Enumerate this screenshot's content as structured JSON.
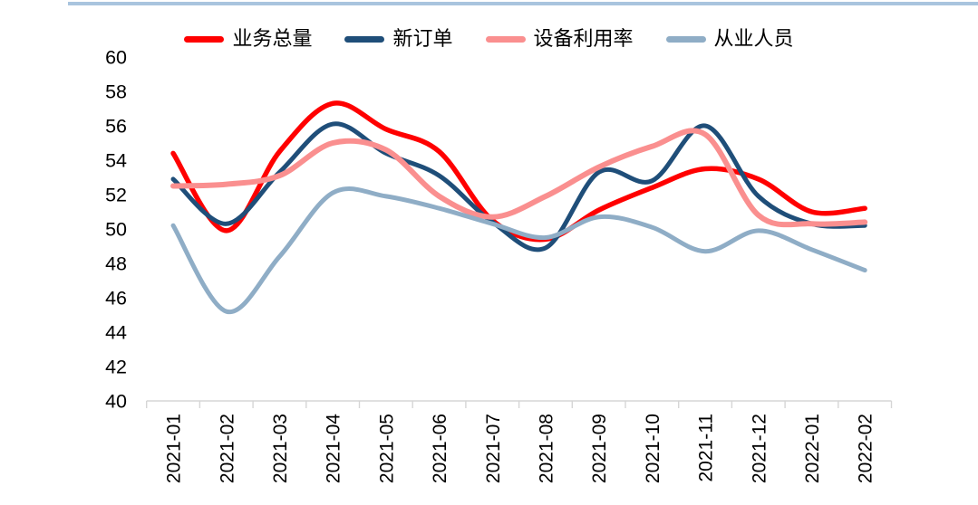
{
  "page": {
    "background": "#ffffff"
  },
  "top_bar": {
    "color": "#a9c4de"
  },
  "axis": {
    "line_color": "#d6d6d6",
    "tick_color": "#d6d6d6",
    "label_color": "#000000"
  },
  "chart_data": {
    "type": "line",
    "title": "",
    "xlabel": "",
    "ylabel": "",
    "grid": false,
    "legend_position": "top",
    "smooth": true,
    "ylim": [
      40,
      60
    ],
    "ytick_step": 2,
    "yticks": [
      40,
      42,
      44,
      46,
      48,
      50,
      52,
      54,
      56,
      58,
      60
    ],
    "categories": [
      "2021-01",
      "2021-02",
      "2021-03",
      "2021-04",
      "2021-05",
      "2021-06",
      "2021-07",
      "2021-08",
      "2021-09",
      "2021-10",
      "2021-11",
      "2021-12",
      "2022-01",
      "2022-02"
    ],
    "series": [
      {
        "name": "业务总量",
        "slug": "business-volume",
        "color": "#ff0000",
        "width": 5.5,
        "values": [
          54.4,
          49.9,
          54.5,
          57.3,
          55.8,
          54.5,
          50.5,
          49.4,
          51.1,
          52.4,
          53.5,
          52.9,
          51.0,
          51.2
        ]
      },
      {
        "name": "新订单",
        "slug": "new-orders",
        "color": "#1f4e79",
        "width": 5,
        "values": [
          52.9,
          50.3,
          53.3,
          56.1,
          54.4,
          53.1,
          50.4,
          48.9,
          53.3,
          52.8,
          56.0,
          51.9,
          50.3,
          50.2
        ]
      },
      {
        "name": "设备利用率",
        "slug": "equipment-utilization",
        "color": "#fa8f8f",
        "width": 6,
        "values": [
          52.5,
          52.6,
          53.1,
          55.0,
          54.6,
          51.9,
          50.7,
          51.9,
          53.6,
          54.8,
          55.5,
          50.8,
          50.3,
          50.4
        ]
      },
      {
        "name": "从业人员",
        "slug": "employees",
        "color": "#8fadc6",
        "width": 5,
        "values": [
          50.2,
          45.2,
          48.4,
          52.1,
          51.9,
          51.2,
          50.3,
          49.5,
          50.7,
          50.1,
          48.7,
          49.9,
          48.8,
          47.6
        ]
      }
    ]
  }
}
